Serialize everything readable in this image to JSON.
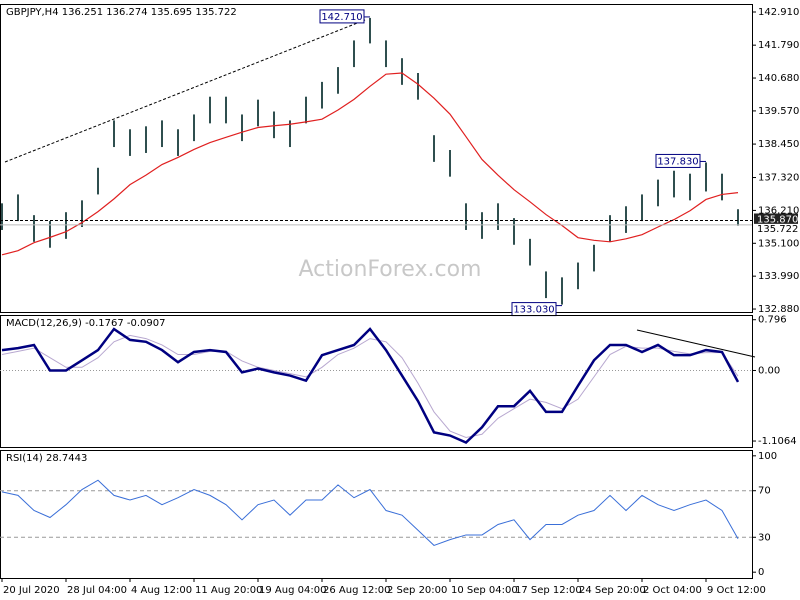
{
  "chart_data": [
    {
      "type": "ohlc",
      "title": "GBPJPY,H4  136.251 136.274 135.695 135.722",
      "watermark": "ActionForex.com",
      "categories": [
        "20 Jul 2020",
        null,
        null,
        null,
        "28 Jul 04:00",
        null,
        null,
        null,
        "4 Aug 12:00",
        null,
        null,
        null,
        "11 Aug 20:00",
        null,
        null,
        null,
        "19 Aug 04:00",
        null,
        null,
        null,
        "26 Aug 12:00",
        null,
        null,
        null,
        "2 Sep 20:00",
        null,
        null,
        null,
        "10 Sep 04:00",
        null,
        null,
        null,
        "17 Sep 12:00",
        null,
        null,
        null,
        "24 Sep 20:00",
        null,
        null,
        null,
        "2 Oct 04:00",
        null,
        null,
        null,
        "9 Oct 12:00",
        null,
        null
      ],
      "series": [
        {
          "name": "High",
          "color": "#2f4f4f",
          "values": [
            136.45,
            136.75,
            136.05,
            135.85,
            136.15,
            136.55,
            137.65,
            139.25,
            138.95,
            139.05,
            139.25,
            138.95,
            139.45,
            140.05,
            140.05,
            139.45,
            139.95,
            139.55,
            139.25,
            140.05,
            140.55,
            141.05,
            141.95,
            142.71,
            141.95,
            141.35,
            140.85,
            138.75,
            138.25,
            136.45,
            136.15,
            136.45,
            135.95,
            135.25,
            134.15,
            133.95,
            134.45,
            135.05,
            136.05,
            136.35,
            136.75,
            137.25,
            137.55,
            137.45,
            137.83,
            137.45,
            136.25
          ]
        },
        {
          "name": "Low",
          "color": "#2f4f4f",
          "values": [
            135.55,
            135.85,
            135.15,
            134.95,
            135.25,
            135.65,
            136.75,
            138.35,
            138.05,
            138.15,
            138.35,
            138.05,
            138.55,
            139.15,
            139.15,
            138.55,
            139.05,
            138.65,
            138.35,
            139.15,
            139.65,
            140.15,
            141.05,
            141.85,
            141.05,
            140.45,
            139.95,
            137.85,
            137.35,
            135.55,
            135.25,
            135.55,
            135.05,
            134.35,
            133.25,
            133.03,
            133.55,
            134.15,
            135.15,
            135.45,
            135.85,
            136.35,
            136.65,
            136.55,
            136.85,
            136.55,
            135.695
          ]
        },
        {
          "name": "MA",
          "color": "#e02020",
          "values": [
            134.71,
            134.85,
            135.12,
            135.3,
            135.49,
            135.8,
            136.17,
            136.6,
            137.08,
            137.4,
            137.76,
            138.0,
            138.27,
            138.5,
            138.68,
            138.85,
            139.01,
            139.07,
            139.12,
            139.2,
            139.29,
            139.6,
            139.96,
            140.4,
            140.81,
            140.85,
            140.47,
            140.0,
            139.46,
            138.7,
            137.93,
            137.4,
            136.91,
            136.5,
            136.07,
            135.7,
            135.29,
            135.2,
            135.15,
            135.25,
            135.39,
            135.65,
            135.9,
            136.2,
            136.58,
            136.75,
            136.81
          ]
        }
      ],
      "ylim": [
        132.78,
        143.18
      ],
      "yticks": [
        {
          "value": 142.91,
          "label": "142.910"
        },
        {
          "value": 141.79,
          "label": "141.790"
        },
        {
          "value": 140.68,
          "label": "140.680"
        },
        {
          "value": 139.57,
          "label": "139.570"
        },
        {
          "value": 138.45,
          "label": "138.450"
        },
        {
          "value": 137.32,
          "label": "137.320"
        },
        {
          "value": 136.21,
          "label": "136.210"
        },
        {
          "value": 135.1,
          "label": "135.100"
        },
        {
          "value": 133.99,
          "label": "133.990"
        },
        {
          "value": 132.88,
          "label": "132.880"
        }
      ],
      "annotations": [
        {
          "value": 142.71,
          "label": "142.710"
        },
        {
          "value": 137.83,
          "label": "137.830"
        },
        {
          "value": 133.03,
          "label": "133.030"
        }
      ],
      "hline": {
        "value": 135.87,
        "label": "135.870"
      },
      "last": {
        "value": 135.722,
        "label": "135.722"
      }
    },
    {
      "type": "line",
      "title": "MACD(12,26,9) -0.1767 -0.0907",
      "series": [
        {
          "name": "MACD",
          "color": "#000080",
          "values": [
            0.32,
            0.35,
            0.4,
            0,
            0,
            0.16,
            0.32,
            0.65,
            0.48,
            0.45,
            0.32,
            0.13,
            0.29,
            0.32,
            0.29,
            -0.03,
            0.03,
            -0.03,
            -0.08,
            -0.16,
            0.24,
            0.32,
            0.4,
            0.65,
            0.32,
            -0.08,
            -0.48,
            -0.97,
            -1.02,
            -1.13,
            -0.89,
            -0.56,
            -0.56,
            -0.32,
            -0.65,
            -0.65,
            -0.24,
            0.16,
            0.4,
            0.4,
            0.29,
            0.4,
            0.24,
            0.24,
            0.32,
            0.29,
            -0.18
          ]
        },
        {
          "name": "Signal",
          "color": "#b8a8d0",
          "values": [
            0.25,
            0.3,
            0.35,
            0.2,
            0.05,
            0.05,
            0.2,
            0.45,
            0.55,
            0.5,
            0.4,
            0.25,
            0.25,
            0.3,
            0.3,
            0.15,
            0.05,
            0,
            -0.05,
            -0.1,
            0.05,
            0.25,
            0.35,
            0.5,
            0.45,
            0.2,
            -0.2,
            -0.65,
            -0.95,
            -1.05,
            -1.0,
            -0.75,
            -0.6,
            -0.45,
            -0.5,
            -0.6,
            -0.45,
            -0.1,
            0.25,
            0.38,
            0.35,
            0.35,
            0.3,
            0.26,
            0.28,
            0.28,
            -0.09
          ]
        }
      ],
      "ylim": [
        -1.2,
        0.87
      ],
      "yticks": [
        0.796,
        {
          "value": 0,
          "label": "0.00"
        },
        -1.1064
      ]
    },
    {
      "type": "line",
      "title": "RSI(14) 28.7443",
      "series": [
        {
          "name": "RSI",
          "color": "#3a6fd8",
          "values": [
            69,
            66,
            53,
            47,
            58,
            71,
            79,
            66,
            62,
            66,
            58,
            64,
            71,
            66,
            58,
            45,
            58,
            62,
            49,
            62,
            62,
            75,
            64,
            71,
            53,
            49,
            36,
            23,
            28,
            32,
            32,
            41,
            45,
            28,
            41,
            41,
            49,
            53,
            66,
            53,
            66,
            58,
            53,
            58,
            62,
            53,
            28.7443
          ]
        }
      ],
      "ylim": [
        -5,
        105
      ],
      "yticks": [
        100,
        70,
        30,
        0
      ],
      "grid": [
        70,
        30
      ]
    }
  ]
}
